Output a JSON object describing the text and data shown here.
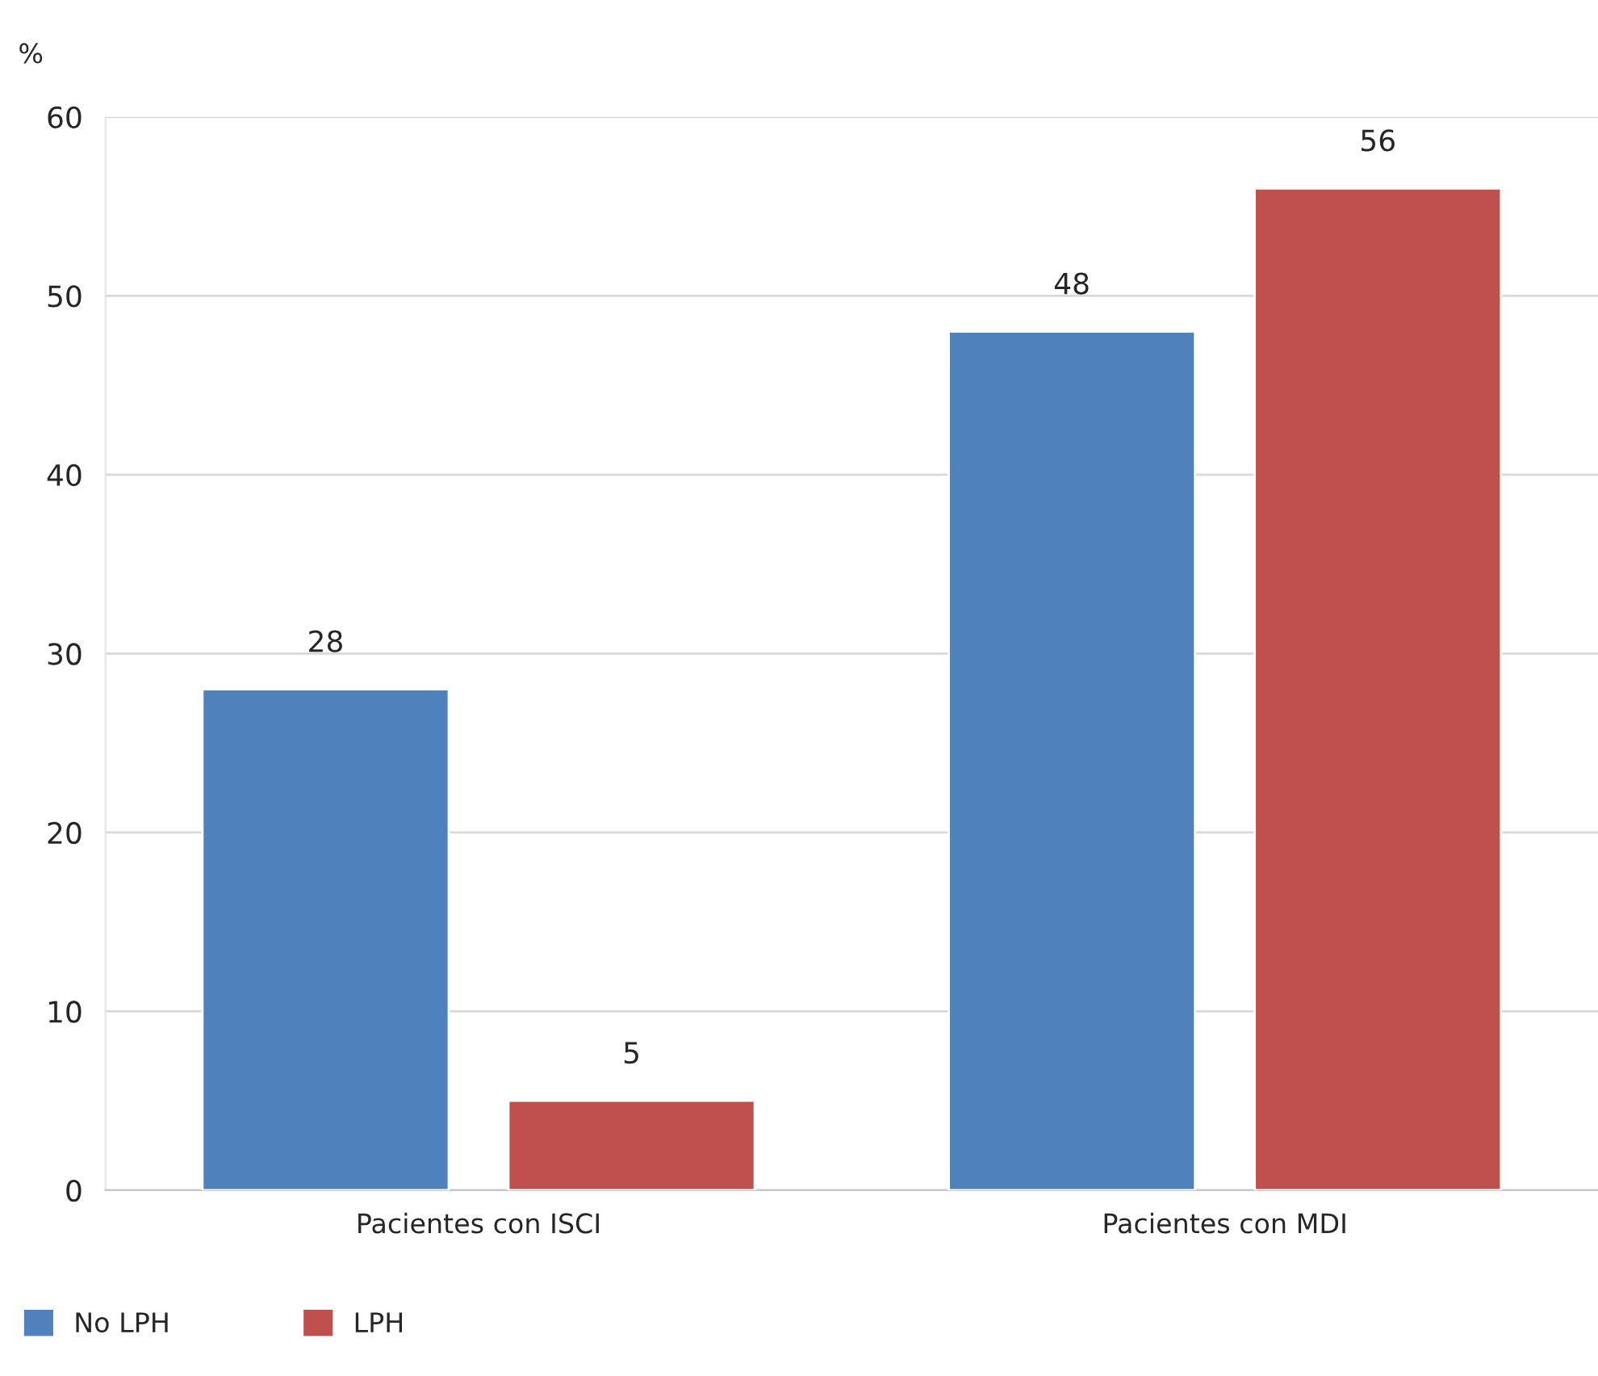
{
  "chart_data": {
    "type": "bar",
    "ylabel": "%",
    "categories": [
      "Pacientes con ISCI",
      "Pacientes con MDI"
    ],
    "series": [
      {
        "name": "No LPH",
        "color": "#4f81bd",
        "values": [
          28,
          48
        ]
      },
      {
        "name": "LPH",
        "color": "#c0504d",
        "values": [
          5,
          56
        ]
      }
    ],
    "ylim": [
      0,
      60
    ],
    "yticks": [
      0,
      10,
      20,
      30,
      40,
      50,
      60
    ],
    "grid": "y",
    "data_labels": true,
    "legend": "bottom left"
  }
}
